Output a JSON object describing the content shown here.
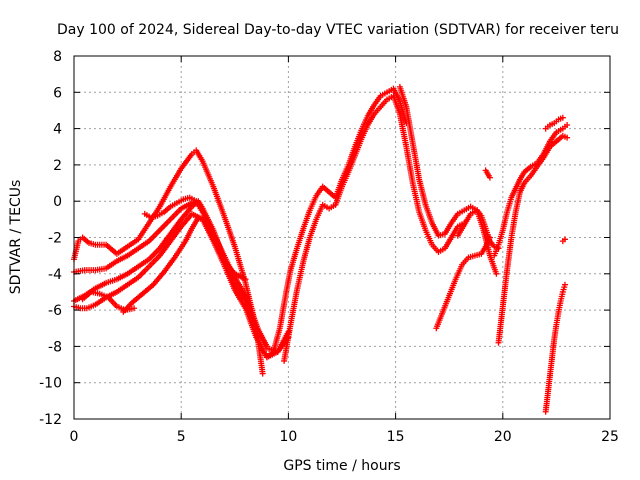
{
  "chart_data": {
    "type": "scatter",
    "title": "Day 100 of 2024, Sidereal Day-to-day VTEC variation (SDTVAR) for receiver teru",
    "xlabel": "GPS time / hours",
    "ylabel": "SDTVAR / TECUs",
    "xlim": [
      0,
      25
    ],
    "ylim": [
      -12,
      8
    ],
    "xticks": [
      "0",
      "5",
      "10",
      "15",
      "20",
      "25"
    ],
    "yticks": [
      "-12",
      "-10",
      "-8",
      "-6",
      "-4",
      "-2",
      "0",
      "2",
      "4",
      "6",
      "8"
    ],
    "grid": true,
    "marker_color": "#ff0000",
    "marker": "+",
    "series": [
      {
        "x": [
          0.0,
          0.2,
          0.4,
          0.7,
          1.0,
          1.5,
          2.0,
          2.5,
          3.0,
          3.5,
          4.0,
          4.5,
          5.0,
          5.5,
          5.7,
          6.0,
          6.5,
          7.0,
          7.5,
          8.0,
          8.5,
          8.8
        ],
        "y": [
          -3.2,
          -2.2,
          -2.0,
          -2.3,
          -2.4,
          -2.4,
          -2.9,
          -2.5,
          -2.1,
          -1.2,
          -0.3,
          0.8,
          1.8,
          2.6,
          2.8,
          2.2,
          0.8,
          -0.8,
          -2.5,
          -4.5,
          -7.0,
          -9.5
        ]
      },
      {
        "x": [
          0.0,
          0.5,
          1.0,
          1.5,
          2.0,
          2.5,
          3.0,
          3.5,
          4.0,
          4.5,
          5.0,
          5.5,
          5.7,
          6.0,
          6.5,
          7.0,
          7.5,
          8.0
        ],
        "y": [
          -3.9,
          -3.8,
          -3.8,
          -3.7,
          -3.3,
          -3.0,
          -2.6,
          -2.2,
          -1.6,
          -1.0,
          -0.4,
          -0.1,
          0.0,
          -0.6,
          -1.8,
          -3.3,
          -4.0,
          -4.3
        ]
      },
      {
        "x": [
          0.0,
          0.5,
          1.0,
          1.5,
          2.0,
          2.5,
          3.0,
          3.5,
          4.0,
          4.5,
          5.0,
          5.5,
          5.8,
          6.0,
          6.5,
          7.0,
          7.5,
          8.0,
          8.5,
          9.0,
          9.5,
          10.0
        ],
        "y": [
          -5.5,
          -5.2,
          -4.8,
          -4.5,
          -4.3,
          -4.0,
          -3.6,
          -3.2,
          -2.6,
          -1.8,
          -1.0,
          -0.3,
          0.0,
          -0.4,
          -1.6,
          -3.2,
          -4.6,
          -5.5,
          -6.9,
          -8.1,
          -8.3,
          -7.5
        ]
      },
      {
        "x": [
          0.0,
          0.3,
          0.6,
          1.0,
          1.5,
          2.0,
          2.5,
          3.0,
          3.5,
          4.0,
          4.5,
          5.0,
          5.5,
          6.0,
          6.5,
          7.0,
          7.5,
          8.0,
          8.5,
          9.0,
          9.5,
          10.0
        ],
        "y": [
          -5.8,
          -5.9,
          -5.9,
          -5.7,
          -5.3,
          -5.0,
          -4.6,
          -4.2,
          -3.6,
          -3.0,
          -2.2,
          -1.4,
          -0.7,
          -1.0,
          -2.2,
          -3.5,
          -4.9,
          -5.9,
          -7.5,
          -8.6,
          -8.3,
          -7.2
        ]
      },
      {
        "x": [
          0.4,
          0.8,
          1.2,
          1.6,
          2.0,
          2.4,
          2.8
        ],
        "y": [
          -5.4,
          -5.0,
          -5.1,
          -5.3,
          -5.8,
          -6.0,
          -5.9
        ]
      },
      {
        "x": [
          2.3,
          2.7,
          3.2,
          3.7,
          4.2,
          4.7,
          5.2,
          5.5,
          5.8,
          6.2,
          6.6,
          7.0,
          7.4,
          7.8,
          8.2,
          8.6,
          9.0
        ],
        "y": [
          -6.1,
          -5.6,
          -5.1,
          -4.6,
          -3.9,
          -3.1,
          -2.2,
          -1.5,
          -0.9,
          -1.1,
          -2.0,
          -3.0,
          -4.0,
          -4.8,
          -5.8,
          -7.1,
          -8.0
        ]
      },
      {
        "x": [
          3.3,
          3.6,
          3.9,
          4.2,
          4.5,
          4.8,
          5.1,
          5.4,
          5.7
        ],
        "y": [
          -0.7,
          -0.9,
          -0.8,
          -0.6,
          -0.3,
          -0.1,
          0.1,
          0.2,
          0.0
        ]
      },
      {
        "x": [
          9.0,
          9.3,
          9.6,
          9.9,
          10.1,
          10.4,
          10.7,
          11.0,
          11.3,
          11.6,
          11.9,
          12.2,
          12.5,
          12.8,
          13.1,
          13.4,
          13.7,
          14.0,
          14.3,
          14.6,
          14.9,
          15.2,
          15.5
        ],
        "y": [
          -8.6,
          -8.3,
          -7.0,
          -5.0,
          -3.8,
          -2.6,
          -1.5,
          -0.5,
          0.3,
          0.8,
          0.5,
          0.2,
          1.2,
          2.0,
          3.0,
          3.9,
          4.7,
          5.3,
          5.8,
          6.0,
          6.2,
          5.5,
          4.3
        ]
      },
      {
        "x": [
          9.8,
          10.1,
          10.4,
          10.7,
          11.0,
          11.3,
          11.6,
          11.9,
          12.2,
          12.5,
          12.8,
          13.1,
          13.4,
          13.7,
          14.0,
          14.3,
          14.6,
          14.9,
          15.2,
          15.5,
          15.8,
          16.1,
          16.4,
          16.7,
          17.0,
          17.3,
          17.6,
          17.9,
          18.2
        ],
        "y": [
          -8.8,
          -6.8,
          -4.9,
          -3.3,
          -2.0,
          -1.0,
          -0.2,
          -0.4,
          -0.2,
          0.8,
          1.6,
          2.5,
          3.4,
          4.2,
          4.8,
          5.2,
          5.6,
          5.8,
          4.8,
          3.0,
          1.0,
          -0.6,
          -1.6,
          -2.4,
          -2.8,
          -2.6,
          -2.0,
          -1.4,
          -1.2
        ]
      },
      {
        "x": [
          15.2,
          15.5,
          15.8,
          16.1,
          16.4,
          16.7,
          17.0,
          17.3,
          17.6,
          17.9,
          18.2,
          18.5,
          18.8,
          19.1,
          19.4,
          19.7
        ],
        "y": [
          6.3,
          5.2,
          3.2,
          1.2,
          -0.2,
          -1.2,
          -1.9,
          -1.8,
          -1.2,
          -0.7,
          -0.5,
          -0.3,
          -0.5,
          -1.6,
          -3.0,
          -4.0
        ]
      },
      {
        "x": [
          16.9,
          17.2,
          17.5,
          17.8,
          18.1,
          18.4,
          18.7,
          19.0,
          19.2,
          19.4
        ],
        "y": [
          -7.0,
          -6.1,
          -5.2,
          -4.3,
          -3.5,
          -3.1,
          -3.0,
          -2.9,
          -2.5,
          -2.0
        ]
      },
      {
        "x": [
          17.9,
          18.2,
          18.5,
          18.8,
          19.0,
          19.2,
          19.4,
          19.6,
          19.8
        ],
        "y": [
          -1.9,
          -1.3,
          -0.7,
          -0.5,
          -0.8,
          -1.5,
          -2.2,
          -2.5,
          -2.6
        ]
      },
      {
        "x": [
          19.6,
          19.8,
          20.0,
          20.2,
          20.4,
          20.6,
          20.8,
          21.0,
          21.3,
          21.6,
          21.9,
          22.2,
          22.5,
          22.8,
          23.0
        ],
        "y": [
          -3.0,
          -2.4,
          -1.6,
          -0.6,
          0.2,
          0.7,
          1.2,
          1.6,
          1.9,
          2.1,
          2.6,
          3.3,
          3.8,
          4.0,
          4.2
        ]
      },
      {
        "x": [
          19.8,
          20.0,
          20.2,
          20.4,
          20.6,
          20.8,
          21.0,
          21.3,
          21.6,
          21.9,
          22.2,
          22.5,
          22.8,
          23.0
        ],
        "y": [
          -7.8,
          -5.8,
          -3.8,
          -2.0,
          -0.6,
          0.5,
          1.0,
          1.4,
          1.9,
          2.4,
          3.0,
          3.3,
          3.6,
          3.5
        ]
      },
      {
        "x": [
          22.0,
          22.2,
          22.4,
          22.6,
          22.8
        ],
        "y": [
          4.0,
          4.2,
          4.3,
          4.5,
          4.6
        ]
      },
      {
        "x": [
          19.2,
          19.3,
          19.4
        ],
        "y": [
          1.7,
          1.5,
          1.3
        ]
      },
      {
        "x": [
          22.0,
          22.1,
          22.2,
          22.3,
          22.4,
          22.5,
          22.6,
          22.7,
          22.8,
          22.9
        ],
        "y": [
          -11.6,
          -10.6,
          -9.6,
          -8.6,
          -7.6,
          -6.8,
          -6.1,
          -5.5,
          -5.0,
          -4.6
        ]
      },
      {
        "x": [
          22.8,
          22.9
        ],
        "y": [
          -2.2,
          -2.1
        ]
      }
    ]
  }
}
